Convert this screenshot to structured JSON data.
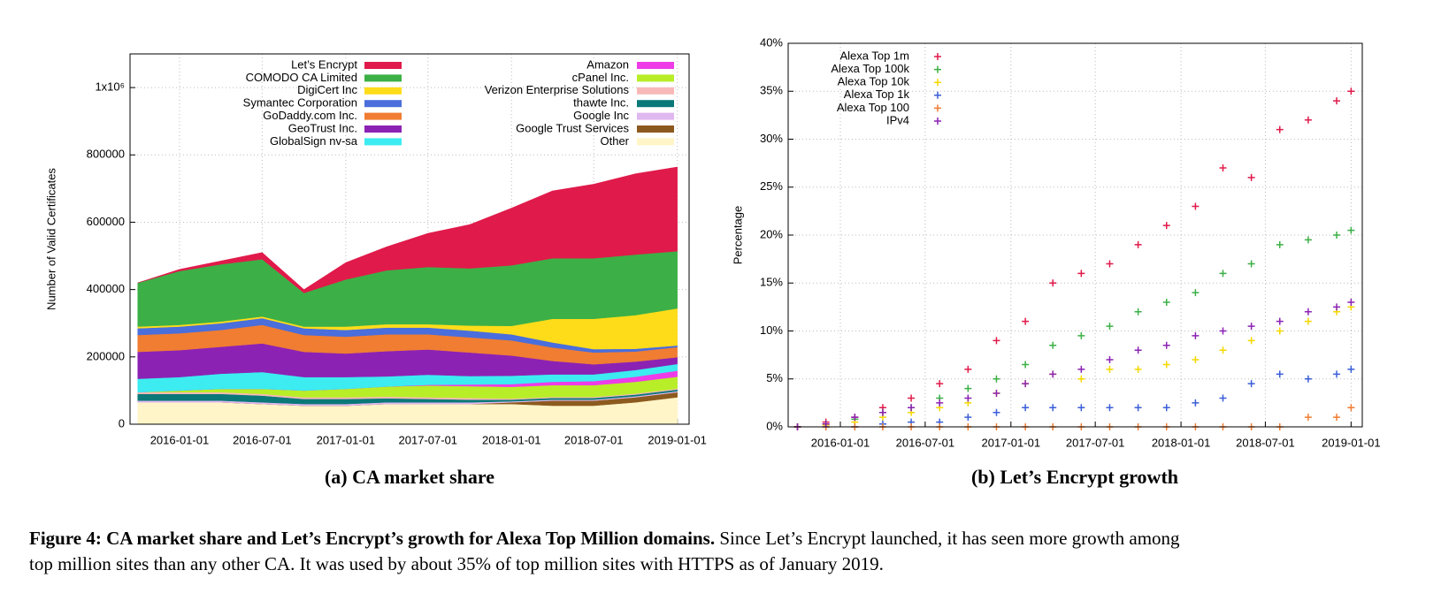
{
  "chart_data": [
    {
      "type": "area",
      "stacked": true,
      "title": "(a) CA market share",
      "y_label": "Number of Valid Certificates",
      "x": [
        "2015-10-01",
        "2016-01-01",
        "2016-04-01",
        "2016-07-01",
        "2016-10-01",
        "2017-01-01",
        "2017-04-01",
        "2017-07-01",
        "2017-10-01",
        "2018-01-01",
        "2018-04-01",
        "2018-07-01",
        "2018-10-01",
        "2019-01-01"
      ],
      "xlim": [
        "2015-09-14",
        "2019-01-27"
      ],
      "xticks": [
        "2016-01-01",
        "2016-07-01",
        "2017-01-01",
        "2017-07-01",
        "2018-01-01",
        "2018-07-01",
        "2019-01-01"
      ],
      "ylim": [
        0,
        1100000
      ],
      "yticks": [
        0,
        200000,
        400000,
        600000,
        800000,
        {
          "value": 1000000,
          "label": "1x10⁶"
        }
      ],
      "grid": true,
      "legend": "top",
      "series": [
        {
          "name": "Let’s Encrypt",
          "color": "#e01a4a",
          "values": [
            0,
            5000,
            10000,
            20000,
            10000,
            50000,
            70000,
            100000,
            130000,
            170000,
            200000,
            220000,
            240000,
            250000
          ]
        },
        {
          "name": "COMODO CA Limited",
          "color": "#3cb046",
          "values": [
            130000,
            160000,
            170000,
            170000,
            100000,
            140000,
            160000,
            170000,
            170000,
            180000,
            180000,
            180000,
            180000,
            170000
          ]
        },
        {
          "name": "DigiCert Inc",
          "color": "#ffdc1a",
          "values": [
            5000,
            5000,
            5000,
            5000,
            5000,
            10000,
            10000,
            10000,
            15000,
            25000,
            70000,
            90000,
            100000,
            110000
          ]
        },
        {
          "name": "Symantec Corporation",
          "color": "#4a6edb",
          "values": [
            20000,
            20000,
            20000,
            20000,
            20000,
            20000,
            20000,
            20000,
            20000,
            18000,
            15000,
            10000,
            8000,
            5000
          ]
        },
        {
          "name": "GoDaddy.com Inc.",
          "color": "#f07d32",
          "values": [
            50000,
            50000,
            50000,
            55000,
            50000,
            50000,
            50000,
            45000,
            45000,
            45000,
            40000,
            35000,
            30000,
            30000
          ]
        },
        {
          "name": "GeoTrust Inc.",
          "color": "#8c22b4",
          "values": [
            80000,
            80000,
            80000,
            85000,
            75000,
            70000,
            75000,
            75000,
            70000,
            60000,
            40000,
            30000,
            25000,
            20000
          ]
        },
        {
          "name": "GlobalSign nv-sa",
          "color": "#3cecf0",
          "values": [
            40000,
            40000,
            45000,
            50000,
            40000,
            35000,
            30000,
            30000,
            25000,
            25000,
            22000,
            20000,
            20000,
            20000
          ]
        },
        {
          "name": "Amazon",
          "color": "#ee3ce8",
          "values": [
            0,
            0,
            0,
            0,
            0,
            0,
            0,
            2000,
            5000,
            8000,
            10000,
            12000,
            15000,
            18000
          ]
        },
        {
          "name": "cPanel Inc.",
          "color": "#b8ee28",
          "values": [
            0,
            5000,
            10000,
            15000,
            20000,
            25000,
            30000,
            35000,
            35000,
            35000,
            35000,
            35000,
            35000,
            35000
          ]
        },
        {
          "name": "Verizon Enterprise Solutions",
          "color": "#f8b8b8",
          "values": [
            5000,
            5000,
            5000,
            5000,
            5000,
            5000,
            5000,
            5000,
            5000,
            3000,
            3000,
            3000,
            3000,
            3000
          ]
        },
        {
          "name": "thawte Inc.",
          "color": "#0a7878",
          "values": [
            20000,
            20000,
            20000,
            20000,
            15000,
            15000,
            12000,
            10000,
            8000,
            5000,
            5000,
            5000,
            5000,
            5000
          ]
        },
        {
          "name": "Google Inc",
          "color": "#e0b8f0",
          "values": [
            5000,
            5000,
            5000,
            5000,
            5000,
            5000,
            5000,
            5000,
            5000,
            3000,
            3000,
            3000,
            3000,
            3000
          ]
        },
        {
          "name": "Google Trust Services",
          "color": "#8c5a1e",
          "values": [
            0,
            0,
            0,
            0,
            0,
            0,
            0,
            0,
            0,
            5000,
            15000,
            15000,
            15000,
            15000
          ]
        },
        {
          "name": "Other",
          "color": "#fff5c8",
          "values": [
            65000,
            65000,
            65000,
            60000,
            55000,
            55000,
            60000,
            60000,
            60000,
            60000,
            55000,
            55000,
            65000,
            80000
          ]
        }
      ]
    },
    {
      "type": "scatter",
      "title": "(b) Let’s Encrypt growth",
      "y_label": "Percentage",
      "x": [
        "2015-10-01",
        "2015-12-01",
        "2016-02-01",
        "2016-04-01",
        "2016-06-01",
        "2016-08-01",
        "2016-10-01",
        "2016-12-01",
        "2017-02-01",
        "2017-04-01",
        "2017-06-01",
        "2017-08-01",
        "2017-10-01",
        "2017-12-01",
        "2018-02-01",
        "2018-04-01",
        "2018-06-01",
        "2018-08-01",
        "2018-10-01",
        "2018-12-01",
        "2019-01-01"
      ],
      "xlim": [
        "2015-09-11",
        "2019-01-25"
      ],
      "xticks": [
        "2016-01-01",
        "2016-07-01",
        "2017-01-01",
        "2017-07-01",
        "2018-01-01",
        "2018-07-01",
        "2019-01-01"
      ],
      "ylim": [
        0,
        40
      ],
      "yticks": [
        {
          "value": 0,
          "label": "0%"
        },
        {
          "value": 5,
          "label": "5%"
        },
        {
          "value": 10,
          "label": "10%"
        },
        {
          "value": 15,
          "label": "15%"
        },
        {
          "value": 20,
          "label": "20%"
        },
        {
          "value": 25,
          "label": "25%"
        },
        {
          "value": 30,
          "label": "30%"
        },
        {
          "value": 35,
          "label": "35%"
        },
        {
          "value": 40,
          "label": "40%"
        }
      ],
      "grid": true,
      "legend": "top-left",
      "series": [
        {
          "name": "Alexa Top 1m",
          "color": "#e01a4a",
          "values": [
            0,
            0.5,
            1,
            2,
            3,
            4.5,
            6,
            9,
            11,
            15,
            16,
            17,
            19,
            21,
            23,
            27,
            26,
            31,
            32,
            34,
            35
          ]
        },
        {
          "name": "Alexa Top 100k",
          "color": "#3cb046",
          "values": [
            0,
            0.3,
            0.8,
            1.5,
            2,
            3,
            4,
            5,
            6.5,
            8.5,
            9.5,
            10.5,
            12,
            13,
            14,
            16,
            17,
            19,
            19.5,
            20,
            20.5
          ]
        },
        {
          "name": "Alexa Top 10k",
          "color": "#f5d800",
          "values": [
            0,
            0.2,
            0.5,
            1,
            1.5,
            2,
            2.5,
            3.5,
            4.5,
            5.5,
            5,
            6,
            6,
            6.5,
            7,
            8,
            9,
            10,
            11,
            12,
            12.5
          ]
        },
        {
          "name": "Alexa Top 1k",
          "color": "#3a5ed8",
          "values": [
            0,
            0,
            0,
            0.3,
            0.5,
            0.5,
            1,
            1.5,
            2,
            2,
            2,
            2,
            2,
            2,
            2.5,
            3,
            4.5,
            5.5,
            5,
            5.5,
            6
          ]
        },
        {
          "name": "Alexa Top 100",
          "color": "#f07d32",
          "values": [
            0,
            0,
            0,
            0,
            0,
            0,
            0,
            0,
            0,
            0,
            0,
            0,
            0,
            0,
            0,
            0,
            0,
            0,
            1,
            1,
            2
          ]
        },
        {
          "name": "IPv4",
          "color": "#8c22b4",
          "values": [
            0,
            0.3,
            1,
            1.5,
            2,
            2.5,
            3,
            3.5,
            4.5,
            5.5,
            6,
            7,
            8,
            8.5,
            9.5,
            10,
            10.5,
            11,
            12,
            12.5,
            13
          ]
        }
      ]
    }
  ],
  "caption": {
    "bold": "Figure 4: CA market share and Let’s Encrypt’s growth for Alexa Top Million domains.",
    "line1": "Since Let’s Encrypt launched, it has seen more growth among",
    "line2": "top million sites than any other CA. It was used by about 35% of top million sites with HTTPS as of January 2019."
  }
}
